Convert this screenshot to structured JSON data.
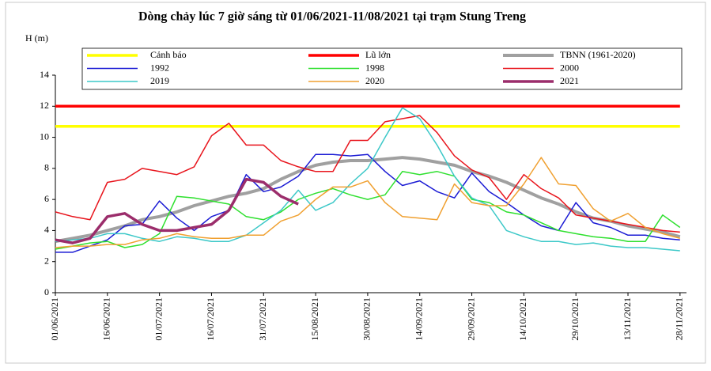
{
  "chart_data": {
    "type": "line",
    "title": "Dòng chảy lúc 7 giờ sáng từ 01/06/2021-11/08/2021 tại trạm Stung Treng",
    "y_label": "H (m)",
    "categories": [
      "01/06/2021",
      null,
      null,
      "16/06/2021",
      null,
      null,
      "01/07/2021",
      null,
      null,
      "16/07/2021",
      null,
      null,
      "31/07/2021",
      null,
      null,
      "15/08/2021",
      null,
      null,
      "30/08/2021",
      null,
      null,
      "14/09/2021",
      null,
      null,
      "29/09/2021",
      null,
      null,
      "14/10/2021",
      null,
      null,
      "29/10/2021",
      null,
      null,
      "13/11/2021",
      null,
      null,
      "28/11/2021"
    ],
    "ylim": [
      0,
      14
    ],
    "yticks": [
      0,
      2,
      4,
      6,
      8,
      10,
      12,
      14
    ],
    "series": [
      {
        "name": "Cảnh báo",
        "color": "#ffff00",
        "line_width": 3.5,
        "values": [
          10.7,
          10.7,
          10.7,
          10.7,
          10.7,
          10.7,
          10.7,
          10.7,
          10.7,
          10.7,
          10.7,
          10.7,
          10.7,
          10.7,
          10.7,
          10.7,
          10.7,
          10.7,
          10.7,
          10.7,
          10.7,
          10.7,
          10.7,
          10.7,
          10.7,
          10.7,
          10.7,
          10.7,
          10.7,
          10.7,
          10.7,
          10.7,
          10.7,
          10.7,
          10.7,
          10.7,
          10.7
        ]
      },
      {
        "name": "Lũ lớn",
        "color": "#ff0000",
        "line_width": 3.5,
        "values": [
          12,
          12,
          12,
          12,
          12,
          12,
          12,
          12,
          12,
          12,
          12,
          12,
          12,
          12,
          12,
          12,
          12,
          12,
          12,
          12,
          12,
          12,
          12,
          12,
          12,
          12,
          12,
          12,
          12,
          12,
          12,
          12,
          12,
          12,
          12,
          12,
          12
        ]
      },
      {
        "name": "TBNN (1961-2020)",
        "color": "#a0a0a0",
        "line_width": 4,
        "values": [
          3.3,
          3.5,
          3.7,
          4.0,
          4.3,
          4.7,
          4.9,
          5.2,
          5.6,
          5.9,
          6.2,
          6.4,
          6.7,
          7.3,
          7.8,
          8.2,
          8.4,
          8.5,
          8.5,
          8.6,
          8.7,
          8.6,
          8.4,
          8.2,
          7.8,
          7.5,
          7.1,
          6.6,
          6.1,
          5.7,
          5.2,
          4.8,
          4.6,
          4.3,
          4.1,
          3.9,
          3.6
        ]
      },
      {
        "name": "1992",
        "color": "#1a1ad4",
        "line_width": 1.5,
        "values": [
          2.6,
          2.6,
          3.0,
          3.4,
          4.3,
          4.4,
          5.9,
          4.8,
          4.0,
          4.9,
          5.3,
          7.6,
          6.5,
          6.8,
          7.5,
          8.9,
          8.9,
          8.8,
          8.9,
          7.8,
          6.9,
          7.2,
          6.5,
          6.1,
          7.7,
          6.5,
          5.8,
          5.0,
          4.3,
          4.0,
          5.8,
          4.5,
          4.2,
          3.7,
          3.7,
          3.5,
          3.4
        ]
      },
      {
        "name": "1998",
        "color": "#2ee02e",
        "line_width": 1.5,
        "values": [
          2.8,
          3.0,
          3.2,
          3.3,
          2.9,
          3.1,
          3.8,
          6.2,
          6.1,
          5.9,
          5.7,
          4.9,
          4.7,
          5.2,
          6.0,
          6.4,
          6.7,
          6.3,
          6.0,
          6.3,
          7.8,
          7.6,
          7.8,
          7.5,
          6.0,
          5.8,
          5.2,
          5.0,
          4.5,
          4.0,
          3.8,
          3.6,
          3.5,
          3.3,
          3.3,
          5.0,
          4.2
        ]
      },
      {
        "name": "2000",
        "color": "#e8141c",
        "line_width": 1.5,
        "values": [
          5.2,
          4.9,
          4.7,
          7.1,
          7.3,
          8.0,
          7.8,
          7.6,
          8.1,
          10.1,
          10.9,
          9.5,
          9.5,
          8.5,
          8.1,
          7.8,
          7.8,
          9.8,
          9.8,
          11.0,
          11.2,
          11.4,
          10.3,
          8.8,
          7.9,
          7.4,
          6.0,
          7.6,
          6.7,
          6.1,
          5.0,
          4.8,
          4.6,
          4.4,
          4.2,
          4.0,
          3.9
        ]
      },
      {
        "name": "2019",
        "color": "#3cc8c8",
        "line_width": 1.5,
        "values": [
          3.3,
          3.4,
          3.5,
          3.8,
          3.8,
          3.5,
          3.3,
          3.6,
          3.5,
          3.3,
          3.3,
          3.7,
          4.5,
          5.3,
          6.6,
          5.3,
          5.8,
          7.0,
          8.0,
          10.0,
          11.9,
          11.2,
          9.5,
          7.5,
          6.1,
          5.6,
          4.0,
          3.6,
          3.3,
          3.3,
          3.1,
          3.2,
          3.0,
          2.9,
          2.9,
          2.8,
          2.7
        ]
      },
      {
        "name": "2020",
        "color": "#f0a030",
        "line_width": 1.5,
        "values": [
          2.9,
          3.0,
          3.0,
          3.1,
          3.1,
          3.4,
          3.5,
          3.8,
          3.6,
          3.5,
          3.5,
          3.7,
          3.7,
          4.6,
          5.0,
          6.0,
          6.8,
          6.8,
          7.2,
          5.8,
          4.9,
          4.8,
          4.7,
          7.0,
          5.8,
          5.6,
          5.6,
          7.0,
          8.7,
          7.0,
          6.9,
          5.4,
          4.6,
          5.1,
          4.2,
          3.8,
          3.5
        ]
      },
      {
        "name": "2021",
        "color": "#9b2d6b",
        "line_width": 3.5,
        "values": [
          3.4,
          3.2,
          3.5,
          4.9,
          5.1,
          4.4,
          4.0,
          4.0,
          4.2,
          4.4,
          5.3,
          7.3,
          7.1,
          6.2,
          5.7,
          null,
          null,
          null,
          null,
          null,
          null,
          null,
          null,
          null,
          null,
          null,
          null,
          null,
          null,
          null,
          null,
          null,
          null,
          null,
          null,
          null,
          null
        ]
      }
    ]
  }
}
